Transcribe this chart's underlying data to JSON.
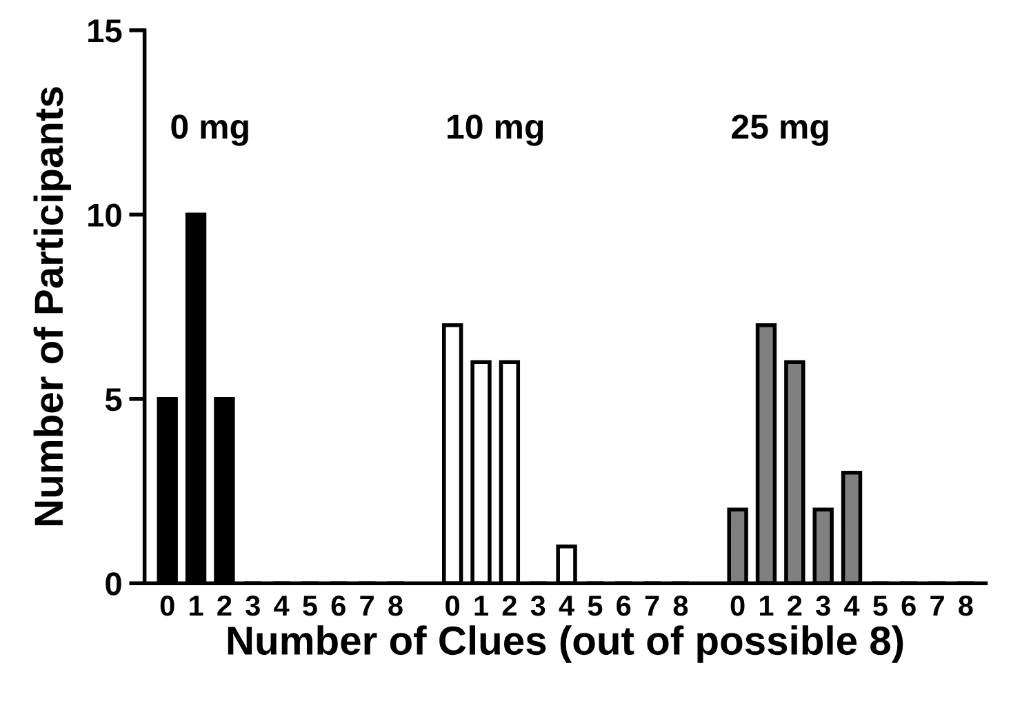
{
  "chart_data": {
    "type": "bar",
    "xlabel": "Number of Clues (out of possible 8)",
    "ylabel": "Number of Participants",
    "categories": [
      "0",
      "1",
      "2",
      "3",
      "4",
      "5",
      "6",
      "7",
      "8",
      null,
      "0",
      "1",
      "2",
      "3",
      "4",
      "5",
      "6",
      "7",
      "8",
      null,
      "0",
      "1",
      "2",
      "3",
      "4",
      "5",
      "6",
      "7",
      "8"
    ],
    "values": [
      5,
      10,
      5,
      0,
      0,
      0,
      0,
      0,
      0,
      null,
      7,
      6,
      6,
      0,
      1,
      0,
      0,
      0,
      0,
      null,
      2,
      7,
      6,
      2,
      3,
      0,
      0,
      0,
      0
    ],
    "colors": [
      "#000000",
      "#000000",
      "#000000",
      "#000000",
      "#000000",
      "#000000",
      "#000000",
      "#000000",
      "#000000",
      null,
      "#ffffff",
      "#ffffff",
      "#ffffff",
      "#ffffff",
      "#ffffff",
      "#ffffff",
      "#ffffff",
      "#ffffff",
      "#ffffff",
      null,
      "#808080",
      "#808080",
      "#808080",
      "#808080",
      "#808080",
      "#808080",
      "#808080",
      "#808080",
      "#808080"
    ],
    "annotations": [
      "0 mg",
      "10 mg",
      "25 mg"
    ],
    "ylim": [
      0,
      15
    ],
    "yticks": [
      0,
      5,
      10,
      15
    ],
    "grid": false,
    "legend": false
  }
}
